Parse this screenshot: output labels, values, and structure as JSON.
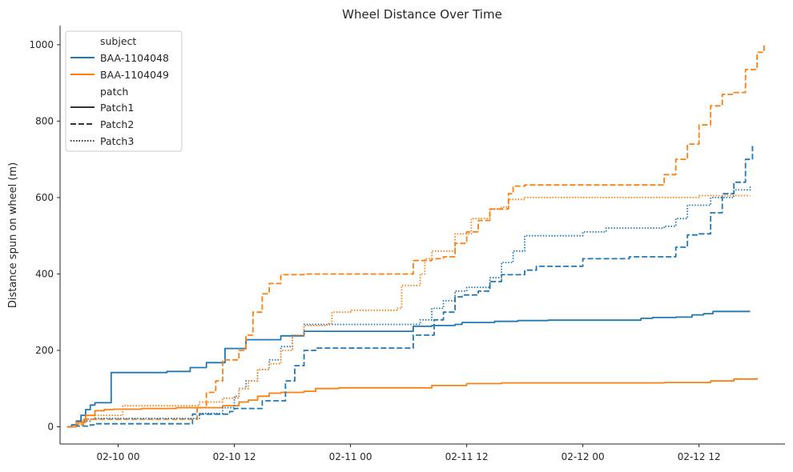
{
  "chart_data": {
    "type": "line",
    "title": "Wheel Distance Over Time",
    "xlabel": "",
    "ylabel": "Distance spun on wheel (m)",
    "xlim": [
      -0.25,
      2.87
    ],
    "ylim": [
      -45,
      1050
    ],
    "x_ticks": [
      0,
      0.5,
      1,
      1.5,
      2,
      2.5
    ],
    "x_tick_labels": [
      "02-10 00",
      "02-10 12",
      "02-11 00",
      "02-11 12",
      "02-12 00",
      "02-12 12"
    ],
    "y_ticks": [
      0,
      200,
      400,
      600,
      800,
      1000
    ],
    "y_tick_labels": [
      "0",
      "200",
      "400",
      "600",
      "800",
      "1000"
    ],
    "x_units": "days since 02-10 00:00",
    "legend": {
      "placement": "top-left",
      "subject_title": "subject",
      "patch_title": "patch",
      "subjects": [
        {
          "name": "BAA-1104048",
          "color": "#1f77b4"
        },
        {
          "name": "BAA-1104049",
          "color": "#ff7f0e"
        }
      ],
      "patches": [
        {
          "name": "Patch1",
          "dash": "solid"
        },
        {
          "name": "Patch2",
          "dash": "dashed"
        },
        {
          "name": "Patch3",
          "dash": "dotted"
        }
      ],
      "neutral_color": "#333333"
    },
    "series": [
      {
        "subject": "BAA-1104048",
        "patch": "Patch1",
        "color": "#1f77b4",
        "dash": "solid",
        "x": [
          -0.22,
          -0.2,
          -0.18,
          -0.16,
          -0.14,
          -0.12,
          -0.1,
          -0.04,
          -0.03,
          0.2,
          0.21,
          0.3,
          0.31,
          0.36,
          0.38,
          0.42,
          0.46,
          0.55,
          0.7,
          0.8,
          1.25,
          1.27,
          1.3,
          1.35,
          1.45,
          1.48,
          1.55,
          1.62,
          1.68,
          1.72,
          1.8,
          1.85,
          2.2,
          2.25,
          2.3,
          2.4,
          2.47,
          2.52,
          2.56,
          2.72
        ],
        "y": [
          0,
          5,
          15,
          30,
          45,
          57,
          63,
          63,
          142,
          142,
          145,
          145,
          155,
          155,
          168,
          168,
          205,
          228,
          238,
          250,
          250,
          263,
          263,
          265,
          268,
          273,
          273,
          276,
          276,
          278,
          278,
          279,
          279,
          284,
          286,
          287,
          293,
          296,
          302,
          302
        ]
      },
      {
        "subject": "BAA-1104049",
        "patch": "Patch1",
        "color": "#ff7f0e",
        "dash": "solid",
        "x": [
          -0.22,
          -0.18,
          -0.14,
          -0.1,
          -0.06,
          -0.02,
          0.1,
          0.25,
          0.35,
          0.45,
          0.52,
          0.56,
          0.6,
          0.65,
          0.7,
          0.8,
          0.85,
          0.95,
          1.25,
          1.35,
          1.5,
          1.65,
          2.0,
          2.35,
          2.55,
          2.65,
          2.75
        ],
        "y": [
          0,
          12,
          30,
          42,
          45,
          46,
          48,
          50,
          50,
          55,
          65,
          70,
          80,
          88,
          90,
          93,
          100,
          102,
          102,
          108,
          113,
          115,
          115,
          116,
          120,
          125,
          128
        ]
      },
      {
        "subject": "BAA-1104048",
        "patch": "Patch2",
        "color": "#1f77b4",
        "dash": "dashed",
        "x": [
          -0.22,
          -0.18,
          -0.12,
          -0.1,
          0.3,
          0.32,
          0.45,
          0.48,
          0.5,
          0.6,
          0.62,
          0.7,
          0.72,
          0.76,
          0.8,
          0.85,
          0.9,
          1.25,
          1.27,
          1.35,
          1.36,
          1.4,
          1.45,
          1.48,
          1.55,
          1.6,
          1.65,
          1.75,
          1.8,
          1.95,
          2.0,
          2.1,
          2.2,
          2.35,
          2.4,
          2.45,
          2.5,
          2.55,
          2.6,
          2.65,
          2.7,
          2.73
        ],
        "y": [
          0,
          2,
          5,
          8,
          8,
          33,
          33,
          40,
          48,
          48,
          68,
          68,
          120,
          160,
          200,
          206,
          206,
          206,
          240,
          240,
          280,
          300,
          340,
          345,
          355,
          380,
          398,
          410,
          420,
          420,
          440,
          440,
          445,
          445,
          470,
          502,
          505,
          560,
          610,
          640,
          700,
          735
        ]
      },
      {
        "subject": "BAA-1104049",
        "patch": "Patch2",
        "color": "#ff7f0e",
        "dash": "dashed",
        "x": [
          -0.22,
          -0.18,
          -0.15,
          0.3,
          0.34,
          0.38,
          0.42,
          0.45,
          0.52,
          0.55,
          0.58,
          0.62,
          0.65,
          0.7,
          0.8,
          1.25,
          1.27,
          1.35,
          1.4,
          1.45,
          1.5,
          1.55,
          1.6,
          1.68,
          1.7,
          1.75,
          2.3,
          2.35,
          2.4,
          2.45,
          2.5,
          2.55,
          2.6,
          2.65,
          2.7,
          2.75,
          2.78
        ],
        "y": [
          0,
          5,
          20,
          20,
          50,
          90,
          120,
          175,
          200,
          240,
          300,
          348,
          375,
          398,
          400,
          400,
          435,
          440,
          445,
          480,
          510,
          540,
          570,
          610,
          630,
          633,
          633,
          660,
          700,
          740,
          790,
          840,
          870,
          875,
          935,
          980,
          1000
        ]
      },
      {
        "subject": "BAA-1104048",
        "patch": "Patch3",
        "color": "#1f77b4",
        "dash": "dotted",
        "x": [
          -0.22,
          -0.2,
          -0.17,
          -0.12,
          -0.1,
          0.3,
          0.35,
          0.45,
          0.5,
          0.52,
          0.55,
          0.6,
          0.65,
          0.7,
          0.75,
          0.8,
          1.25,
          1.3,
          1.35,
          1.4,
          1.45,
          1.5,
          1.6,
          1.65,
          1.7,
          1.75,
          1.95,
          2.0,
          2.1,
          2.35,
          2.4,
          2.45,
          2.55,
          2.65,
          2.72
        ],
        "y": [
          0,
          5,
          15,
          20,
          22,
          22,
          35,
          50,
          80,
          100,
          120,
          150,
          175,
          210,
          240,
          268,
          268,
          280,
          310,
          330,
          355,
          365,
          390,
          430,
          460,
          500,
          500,
          510,
          520,
          525,
          545,
          580,
          600,
          620,
          630
        ]
      },
      {
        "subject": "BAA-1104049",
        "patch": "Patch3",
        "color": "#ff7f0e",
        "dash": "dotted",
        "x": [
          -0.22,
          -0.18,
          -0.15,
          -0.1,
          0.02,
          0.3,
          0.35,
          0.45,
          0.52,
          0.56,
          0.6,
          0.65,
          0.7,
          0.75,
          0.8,
          0.9,
          0.92,
          1.0,
          1.2,
          1.22,
          1.3,
          1.32,
          1.35,
          1.45,
          1.52,
          1.6,
          1.65,
          1.68,
          1.75,
          2.0,
          2.35,
          2.5,
          2.72
        ],
        "y": [
          0,
          8,
          20,
          30,
          55,
          55,
          65,
          75,
          100,
          120,
          150,
          165,
          200,
          240,
          265,
          270,
          300,
          305,
          310,
          370,
          400,
          440,
          460,
          505,
          545,
          570,
          575,
          595,
          600,
          600,
          600,
          605,
          605
        ]
      }
    ]
  }
}
